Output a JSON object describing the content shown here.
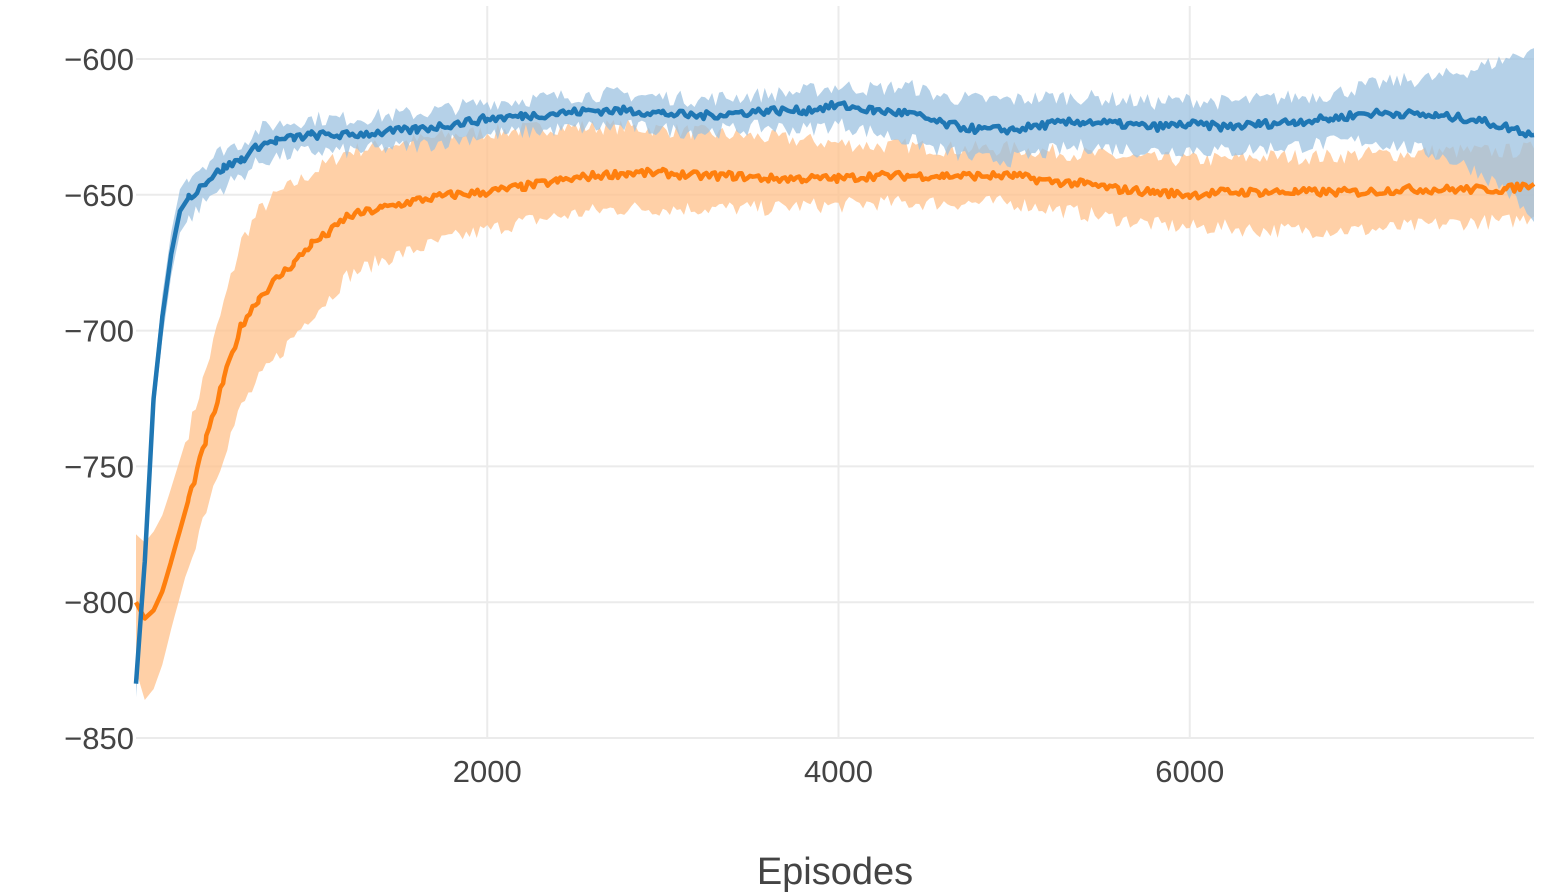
{
  "chart_data": {
    "type": "line",
    "title": "",
    "xlabel": "Episodes",
    "ylabel": "",
    "xlim": [
      0,
      7960
    ],
    "ylim": [
      -850,
      -590
    ],
    "x_ticks": [
      2000,
      4000,
      6000
    ],
    "x_tick_labels": [
      "2000",
      "4000",
      "6000"
    ],
    "y_ticks": [
      -600,
      -650,
      -700,
      -750,
      -800,
      -850
    ],
    "y_tick_labels": [
      "−600",
      "−650",
      "−700",
      "−750",
      "−800",
      "−850"
    ],
    "grid": true,
    "legend": "none",
    "series": [
      {
        "color": "#1f77b4",
        "band_color": "#9cc2e0",
        "x": [
          0,
          50,
          100,
          150,
          200,
          250,
          300,
          400,
          500,
          600,
          700,
          800,
          900,
          1000,
          1200,
          1400,
          1600,
          1800,
          2000,
          2200,
          2400,
          2600,
          2800,
          3000,
          3200,
          3400,
          3600,
          3800,
          4000,
          4200,
          4400,
          4600,
          4800,
          5000,
          5200,
          5400,
          5600,
          5800,
          6000,
          6200,
          6400,
          6600,
          6800,
          7000,
          7200,
          7400,
          7600,
          7800,
          7960
        ],
        "mean": [
          -830,
          -785,
          -725,
          -695,
          -672,
          -656,
          -651,
          -645,
          -640,
          -637,
          -632,
          -630,
          -629,
          -628,
          -628,
          -627,
          -626,
          -624,
          -622,
          -621,
          -620,
          -619,
          -619,
          -620,
          -621,
          -620,
          -619,
          -619,
          -617,
          -619,
          -620,
          -624,
          -626,
          -626,
          -624,
          -623,
          -624,
          -625,
          -624,
          -625,
          -624,
          -623,
          -622,
          -620,
          -620,
          -621,
          -622,
          -625,
          -628
        ],
        "lower": [
          -835,
          -790,
          -732,
          -703,
          -680,
          -664,
          -659,
          -652,
          -647,
          -643,
          -638,
          -636,
          -635,
          -634,
          -634,
          -633,
          -632,
          -630,
          -628,
          -627,
          -626,
          -625,
          -625,
          -626,
          -627,
          -626,
          -625,
          -626,
          -624,
          -627,
          -630,
          -634,
          -637,
          -637,
          -634,
          -632,
          -633,
          -634,
          -633,
          -634,
          -633,
          -632,
          -631,
          -630,
          -632,
          -635,
          -640,
          -648,
          -660
        ],
        "upper": [
          -825,
          -780,
          -718,
          -687,
          -664,
          -648,
          -643,
          -638,
          -633,
          -631,
          -626,
          -624,
          -623,
          -622,
          -622,
          -621,
          -620,
          -618,
          -616,
          -615,
          -614,
          -613,
          -613,
          -614,
          -615,
          -614,
          -613,
          -612,
          -610,
          -611,
          -610,
          -614,
          -615,
          -615,
          -614,
          -614,
          -615,
          -616,
          -615,
          -616,
          -615,
          -614,
          -613,
          -610,
          -608,
          -607,
          -604,
          -600,
          -596
        ]
      },
      {
        "color": "#ff7f0e",
        "band_color": "#ffc08a",
        "x": [
          0,
          50,
          100,
          150,
          200,
          300,
          400,
          500,
          600,
          700,
          800,
          900,
          1000,
          1100,
          1200,
          1400,
          1600,
          1800,
          2000,
          2200,
          2400,
          2600,
          2800,
          3000,
          3200,
          3400,
          3600,
          3800,
          4000,
          4200,
          4400,
          4600,
          4800,
          5000,
          5200,
          5400,
          5600,
          5800,
          6000,
          6200,
          6400,
          6600,
          6800,
          7000,
          7200,
          7400,
          7600,
          7800,
          7960
        ],
        "mean": [
          -800,
          -806,
          -803,
          -796,
          -785,
          -762,
          -740,
          -718,
          -698,
          -688,
          -681,
          -675,
          -668,
          -664,
          -658,
          -655,
          -652,
          -650,
          -649,
          -647,
          -645,
          -643,
          -642,
          -642,
          -643,
          -643,
          -644,
          -644,
          -644,
          -643,
          -643,
          -643,
          -643,
          -643,
          -645,
          -646,
          -648,
          -649,
          -650,
          -649,
          -649,
          -649,
          -649,
          -649,
          -648,
          -648,
          -648,
          -648,
          -646
        ],
        "lower": [
          -825,
          -836,
          -832,
          -823,
          -810,
          -786,
          -765,
          -745,
          -728,
          -718,
          -710,
          -702,
          -694,
          -688,
          -680,
          -674,
          -670,
          -666,
          -663,
          -660,
          -658,
          -656,
          -655,
          -655,
          -655,
          -655,
          -655,
          -654,
          -654,
          -653,
          -653,
          -653,
          -653,
          -653,
          -655,
          -657,
          -659,
          -661,
          -662,
          -662,
          -663,
          -663,
          -663,
          -663,
          -662,
          -661,
          -660,
          -660,
          -658
        ],
        "upper": [
          -775,
          -778,
          -774,
          -768,
          -758,
          -737,
          -714,
          -690,
          -667,
          -656,
          -650,
          -646,
          -642,
          -638,
          -634,
          -632,
          -630,
          -628,
          -627,
          -626,
          -625,
          -625,
          -625,
          -626,
          -627,
          -628,
          -629,
          -630,
          -631,
          -632,
          -632,
          -633,
          -633,
          -633,
          -634,
          -635,
          -636,
          -637,
          -637,
          -637,
          -636,
          -636,
          -636,
          -635,
          -635,
          -634,
          -634,
          -634,
          -633
        ]
      }
    ]
  }
}
